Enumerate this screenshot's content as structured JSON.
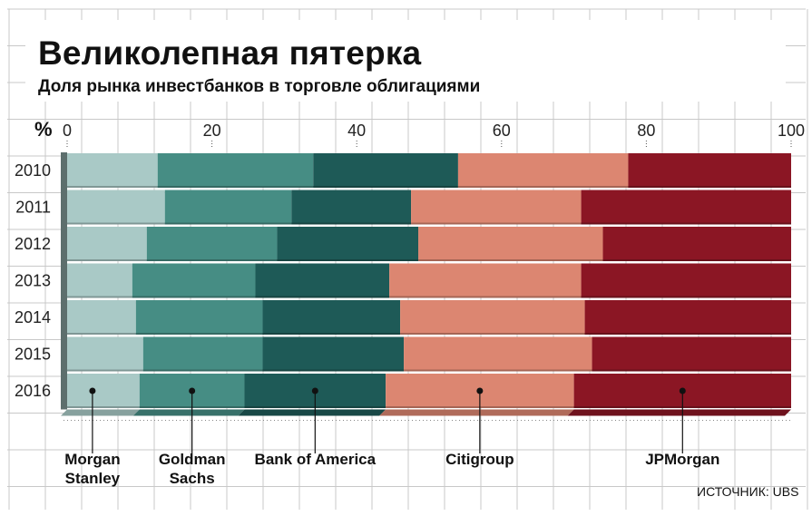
{
  "title": "Великолепная пятерка",
  "subtitle": "Доля рынка инвестбанков в торговле облигациями",
  "source": "ИСТОЧНИК: UBS",
  "chart_data": {
    "type": "bar",
    "orientation": "horizontal",
    "stacked": true,
    "unit_label": "%",
    "xlim": [
      0,
      100
    ],
    "x_ticks": [
      0,
      20,
      40,
      60,
      80,
      100
    ],
    "categories": [
      "2010",
      "2011",
      "2012",
      "2013",
      "2014",
      "2015",
      "2016"
    ],
    "series": [
      {
        "name": "Morgan Stanley",
        "color": "#a9c9c6",
        "values": [
          12.5,
          13.5,
          11,
          9,
          9.5,
          10.5,
          10
        ]
      },
      {
        "name": "Goldman Sachs",
        "color": "#468d84",
        "values": [
          21.5,
          17.5,
          18,
          17,
          17.5,
          16.5,
          14.5
        ]
      },
      {
        "name": "Bank of America",
        "color": "#1e5a57",
        "values": [
          20,
          16.5,
          19.5,
          18.5,
          19,
          19.5,
          19.5
        ]
      },
      {
        "name": "Citigroup",
        "color": "#dc8671",
        "values": [
          23.5,
          23.5,
          25.5,
          26.5,
          25.5,
          26,
          26
        ]
      },
      {
        "name": "JPMorgan",
        "color": "#8b1624",
        "values": [
          22.5,
          29,
          26,
          29,
          28.5,
          27.5,
          30
        ]
      }
    ],
    "legend_labels": [
      "Morgan\nStanley",
      "Goldman\nSachs",
      "Bank of America",
      "Citigroup",
      "JPMorgan"
    ],
    "legend_placement": "bottom",
    "grid": true
  }
}
